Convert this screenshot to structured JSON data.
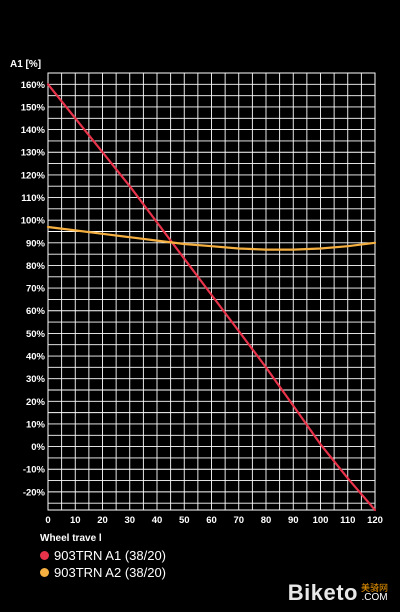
{
  "chart_data": {
    "type": "line",
    "ylabel": "A1 [%]",
    "xlabel": "Wheel trave l",
    "x_ticks": [
      "0",
      "10",
      "20",
      "30",
      "40",
      "50",
      "60",
      "70",
      "80",
      "90",
      "100",
      "110",
      "120"
    ],
    "y_ticks": [
      "160%",
      "150%",
      "140%",
      "130%",
      "120%",
      "110%",
      "100%",
      "90%",
      "80%",
      "70%",
      "60%",
      "50%",
      "40%",
      "30%",
      "20%",
      "10%",
      "0%",
      "-10%",
      "-20%"
    ],
    "xlim": [
      0,
      120
    ],
    "ylim": [
      -28,
      165
    ],
    "grid": true,
    "legend_position": "bottom-left",
    "series": [
      {
        "name": "903TRN A1 (38/20)",
        "color": "#e8334a",
        "x": [
          0,
          10,
          20,
          30,
          40,
          50,
          60,
          70,
          80,
          90,
          100,
          110,
          120
        ],
        "y": [
          160,
          145,
          130,
          115,
          99,
          83,
          67,
          51,
          35,
          18,
          1,
          -14,
          -28
        ]
      },
      {
        "name": "903TRN A2 (38/20)",
        "color": "#f5b041",
        "x": [
          0,
          10,
          20,
          30,
          40,
          50,
          60,
          70,
          80,
          90,
          100,
          110,
          120
        ],
        "y": [
          97,
          95.5,
          94,
          92.5,
          91,
          89.5,
          88.5,
          87.5,
          87,
          87,
          87.5,
          88.5,
          90
        ]
      }
    ]
  },
  "watermark": {
    "text": "Biketo",
    "cn": "美骑网",
    "com": ".COM"
  }
}
